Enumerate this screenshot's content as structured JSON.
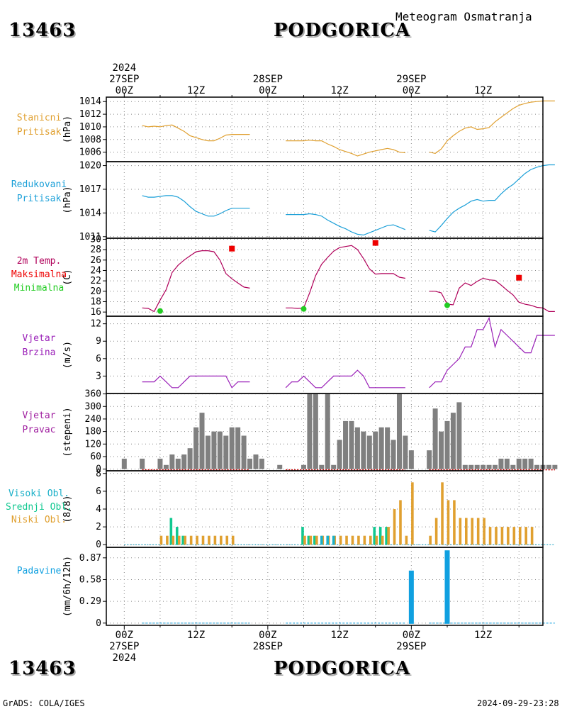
{
  "header": {
    "station_id": "13463",
    "station_name": "PODGORICA",
    "subtitle": "Meteogram Osmatranja"
  },
  "footer": {
    "station_id": "13463",
    "station_name": "PODGORICA",
    "credit": "GrADS: COLA/IGES",
    "timestamp": "2024-09-29-23:28"
  },
  "time_axis": {
    "top_labels": [
      {
        "hour": 0,
        "lines": [
          "2024",
          "27SEP",
          "00Z"
        ]
      },
      {
        "hour": 12,
        "lines": [
          "12Z"
        ]
      },
      {
        "hour": 24,
        "lines": [
          "28SEP",
          "00Z"
        ]
      },
      {
        "hour": 36,
        "lines": [
          "12Z"
        ]
      },
      {
        "hour": 48,
        "lines": [
          "29SEP",
          "00Z"
        ]
      },
      {
        "hour": 60,
        "lines": [
          "12Z"
        ]
      }
    ],
    "bottom_labels": [
      {
        "hour": 0,
        "lines": [
          "00Z",
          "27SEP",
          "2024"
        ]
      },
      {
        "hour": 12,
        "lines": [
          "12Z"
        ]
      },
      {
        "hour": 24,
        "lines": [
          "00Z",
          "28SEP"
        ]
      },
      {
        "hour": 36,
        "lines": [
          "12Z"
        ]
      },
      {
        "hour": 48,
        "lines": [
          "00Z",
          "29SEP"
        ]
      },
      {
        "hour": 60,
        "lines": [
          "12Z"
        ]
      }
    ]
  },
  "colors": {
    "station_pressure": "#e0a030",
    "reduced_pressure": "#1ca0d8",
    "temperature": "#b0005a",
    "tmax": "#ee0000",
    "tmin": "#22cc22",
    "wind_speed": "#9a20b8",
    "wind_dir_bar": "#808080",
    "wind_dir_label": "#a020a0",
    "cloud_high": "#1ab0c8",
    "cloud_mid": "#10c890",
    "cloud_low": "#e0a030",
    "precip": "#10a0e0"
  },
  "chart_data": [
    {
      "id": "station_pressure",
      "type": "line",
      "labels": [
        "Stanicni",
        "Pritisak"
      ],
      "ylabel": "(hPa)",
      "yticks": [
        1006,
        1008,
        1010,
        1012,
        1014
      ],
      "ylim": [
        1004.5,
        1014.7
      ],
      "segments": [
        {
          "x": [
            3,
            4,
            5,
            6,
            7,
            8,
            9,
            10,
            11,
            12,
            13,
            14,
            15,
            16,
            17,
            18,
            19,
            20,
            21
          ],
          "y": [
            1010.2,
            1010.0,
            1010.1,
            1010.0,
            1010.2,
            1010.3,
            1009.8,
            1009.3,
            1008.6,
            1008.3,
            1008.0,
            1007.8,
            1007.8,
            1008.2,
            1008.7,
            1008.8,
            1008.8,
            1008.8,
            1008.8
          ]
        },
        {
          "x": [
            27,
            28,
            29,
            30,
            31,
            32,
            33,
            34,
            35,
            36,
            37,
            38,
            39,
            40,
            41,
            42,
            43,
            44,
            45,
            46,
            47
          ],
          "y": [
            1007.8,
            1007.8,
            1007.8,
            1007.8,
            1007.9,
            1007.8,
            1007.8,
            1007.3,
            1006.9,
            1006.4,
            1006.1,
            1005.8,
            1005.4,
            1005.7,
            1006.0,
            1006.2,
            1006.4,
            1006.6,
            1006.4,
            1006.0,
            1005.9
          ]
        },
        {
          "x": [
            51,
            52,
            53,
            54,
            55,
            56,
            57,
            58,
            59,
            60,
            61,
            62,
            63,
            64,
            65,
            66,
            67,
            68,
            69,
            70,
            71,
            72
          ],
          "y": [
            1006.0,
            1005.8,
            1006.5,
            1007.8,
            1008.6,
            1009.3,
            1009.8,
            1010.0,
            1009.6,
            1009.7,
            1009.9,
            1010.8,
            1011.5,
            1012.2,
            1012.9,
            1013.4,
            1013.7,
            1013.9,
            1014.0,
            1014.1,
            1014.1,
            1014.1
          ]
        }
      ]
    },
    {
      "id": "reduced_pressure",
      "type": "line",
      "labels": [
        "Redukovani",
        "Pritisak"
      ],
      "ylabel": "(hPa)",
      "yticks": [
        1011,
        1014,
        1017,
        1020
      ],
      "ylim": [
        1010.8,
        1020.5
      ],
      "segments": [
        {
          "x": [
            3,
            4,
            5,
            6,
            7,
            8,
            9,
            10,
            11,
            12,
            13,
            14,
            15,
            16,
            17,
            18,
            19,
            20,
            21
          ],
          "y": [
            1016.2,
            1016.0,
            1016.0,
            1016.1,
            1016.2,
            1016.2,
            1016.0,
            1015.5,
            1014.8,
            1014.2,
            1013.9,
            1013.6,
            1013.6,
            1013.9,
            1014.3,
            1014.6,
            1014.6,
            1014.6,
            1014.6
          ]
        },
        {
          "x": [
            27,
            28,
            29,
            30,
            31,
            32,
            33,
            34,
            35,
            36,
            37,
            38,
            39,
            40,
            41,
            42,
            43,
            44,
            45,
            46,
            47
          ],
          "y": [
            1013.8,
            1013.8,
            1013.8,
            1013.8,
            1013.9,
            1013.8,
            1013.6,
            1013.1,
            1012.7,
            1012.3,
            1012.0,
            1011.6,
            1011.3,
            1011.2,
            1011.5,
            1011.8,
            1012.1,
            1012.4,
            1012.5,
            1012.2,
            1011.9
          ]
        },
        {
          "x": [
            51,
            52,
            53,
            54,
            55,
            56,
            57,
            58,
            59,
            60,
            61,
            62,
            63,
            64,
            65,
            66,
            67,
            68,
            69,
            70,
            71,
            72
          ],
          "y": [
            1011.8,
            1011.6,
            1012.4,
            1013.3,
            1014.1,
            1014.6,
            1015.0,
            1015.5,
            1015.7,
            1015.5,
            1015.6,
            1015.6,
            1016.4,
            1017.1,
            1017.6,
            1018.3,
            1019.0,
            1019.5,
            1019.8,
            1020.0,
            1020.1,
            1020.1
          ]
        }
      ]
    },
    {
      "id": "temperature",
      "type": "line",
      "labels": [
        "2m Temp.",
        "Maksimalna",
        "Minimalna"
      ],
      "ylabel": "(C)",
      "yticks": [
        16,
        18,
        20,
        22,
        24,
        26,
        28,
        30
      ],
      "ylim": [
        15.2,
        30.2
      ],
      "segments": [
        {
          "x": [
            3,
            4,
            5,
            6,
            7,
            8,
            9,
            10,
            11,
            12,
            13,
            14,
            15,
            16,
            17,
            18,
            19,
            20,
            21
          ],
          "y": [
            16.8,
            16.7,
            16.1,
            18.3,
            20.3,
            23.6,
            25.0,
            26.0,
            26.8,
            27.6,
            27.8,
            27.8,
            27.6,
            26.0,
            23.4,
            22.4,
            21.6,
            20.8,
            20.6
          ]
        },
        {
          "x": [
            27,
            28,
            29,
            30,
            31,
            32,
            33,
            34,
            35,
            36,
            37,
            38,
            39,
            40,
            41,
            42,
            43,
            44,
            45,
            46,
            47
          ],
          "y": [
            16.8,
            16.8,
            16.7,
            16.8,
            19.7,
            23.0,
            25.2,
            26.5,
            27.7,
            28.4,
            28.6,
            28.8,
            28.0,
            26.3,
            24.3,
            23.3,
            23.4,
            23.4,
            23.4,
            22.7,
            22.5
          ]
        },
        {
          "x": [
            51,
            52,
            53,
            54,
            55,
            56,
            57,
            58,
            59,
            60,
            61,
            62,
            63,
            64,
            65,
            66,
            67,
            68,
            69,
            70,
            71,
            72
          ],
          "y": [
            20.0,
            20.0,
            19.7,
            17.5,
            17.4,
            20.6,
            21.6,
            21.1,
            21.9,
            22.5,
            22.2,
            22.1,
            21.2,
            20.2,
            19.3,
            17.9,
            17.5,
            17.3,
            16.9,
            16.8,
            16.1,
            16.1
          ]
        }
      ],
      "tmax": [
        {
          "x": 18,
          "y": 28.2
        },
        {
          "x": 42,
          "y": 29.3
        },
        {
          "x": 66,
          "y": 22.6
        }
      ],
      "tmin": [
        {
          "x": 6,
          "y": 16.2
        },
        {
          "x": 30,
          "y": 16.6
        },
        {
          "x": 54,
          "y": 17.3
        }
      ]
    },
    {
      "id": "wind_speed",
      "type": "line",
      "labels": [
        "Vjetar",
        "Brzina"
      ],
      "ylabel": "(m/s)",
      "yticks": [
        3,
        6,
        9,
        12
      ],
      "ylim": [
        0,
        13.3
      ],
      "segments": [
        {
          "x": [
            3,
            4,
            5,
            6,
            7,
            8,
            9,
            10,
            11,
            12,
            13,
            14,
            15,
            16,
            17,
            18,
            19,
            20,
            21
          ],
          "y": [
            2,
            2,
            2,
            3,
            2,
            1,
            1,
            2,
            3,
            3,
            3,
            3,
            3,
            3,
            3,
            1,
            2,
            2,
            2
          ]
        },
        {
          "x": [
            27,
            28,
            29,
            30,
            31,
            32,
            33,
            34,
            35,
            36,
            37,
            38,
            39,
            40,
            41,
            42,
            43,
            44,
            45,
            46,
            47
          ],
          "y": [
            1,
            2,
            2,
            3,
            2,
            1,
            1,
            2,
            3,
            3,
            3,
            3,
            4,
            3,
            1,
            1,
            1,
            1,
            1,
            1,
            1
          ]
        },
        {
          "x": [
            51,
            52,
            53,
            54,
            55,
            56,
            57,
            58,
            59,
            60,
            61,
            62,
            63,
            64,
            65,
            66,
            67,
            68,
            69,
            70,
            71,
            72
          ],
          "y": [
            1,
            2,
            2,
            4,
            5,
            6,
            8,
            8,
            11,
            11,
            13,
            8,
            11,
            10,
            9,
            8,
            7,
            7,
            10,
            10,
            10,
            10
          ]
        }
      ]
    },
    {
      "id": "wind_direction",
      "type": "bar",
      "labels": [
        "Vjetar",
        "Pravac"
      ],
      "ylabel": "(stepeni)",
      "yticks": [
        0,
        60,
        120,
        180,
        240,
        300,
        360
      ],
      "ylim": [
        -8,
        362
      ],
      "x": [
        0,
        3,
        6,
        7,
        8,
        9,
        10,
        11,
        12,
        13,
        14,
        15,
        16,
        17,
        18,
        19,
        20,
        21,
        22,
        23,
        26,
        30,
        31,
        32,
        33,
        34,
        35,
        36,
        37,
        38,
        39,
        40,
        41,
        42,
        43,
        44,
        45,
        46,
        47,
        48,
        51,
        52,
        53,
        54,
        55,
        56,
        57,
        58,
        59,
        60,
        61,
        62,
        63,
        64,
        65,
        66,
        67,
        68,
        69,
        70,
        71,
        72
      ],
      "values": [
        50,
        50,
        50,
        20,
        70,
        50,
        70,
        100,
        200,
        270,
        160,
        180,
        180,
        160,
        200,
        200,
        160,
        50,
        70,
        50,
        20,
        20,
        360,
        360,
        20,
        360,
        20,
        140,
        230,
        230,
        200,
        180,
        160,
        180,
        200,
        200,
        140,
        360,
        160,
        90,
        90,
        290,
        180,
        230,
        270,
        320,
        20,
        20,
        20,
        20,
        20,
        20,
        50,
        50,
        20,
        50,
        50,
        50,
        20,
        20,
        20,
        20
      ]
    },
    {
      "id": "clouds",
      "type": "bar",
      "labels": [
        "Visoki Obl.",
        "Srednji Obl.",
        "Niski Obl."
      ],
      "ylabel": "(8/8)",
      "yticks": [
        0,
        2,
        4,
        6,
        8
      ],
      "ylim": [
        -0.3,
        8.3
      ],
      "series": [
        {
          "name": "Visoki Obl.",
          "x": [
            33,
            34,
            35
          ],
          "values": [
            1,
            1,
            1
          ]
        },
        {
          "name": "Srednji Obl.",
          "x": [
            8,
            9,
            10,
            30,
            31,
            32,
            42,
            43,
            44
          ],
          "values": [
            3,
            2,
            1,
            2,
            1,
            1,
            2,
            2,
            2
          ]
        },
        {
          "name": "Niski Obl.",
          "x": [
            6,
            7,
            8,
            9,
            10,
            11,
            12,
            13,
            14,
            15,
            16,
            17,
            18,
            30,
            31,
            32,
            33,
            34,
            35,
            36,
            37,
            38,
            39,
            40,
            41,
            42,
            43,
            44,
            45,
            46,
            47,
            48,
            51,
            52,
            53,
            54,
            55,
            56,
            57,
            58,
            59,
            60,
            61,
            62,
            63,
            64,
            65,
            66,
            67,
            68
          ],
          "values": [
            1,
            1,
            1,
            1,
            1,
            1,
            1,
            1,
            1,
            1,
            1,
            1,
            1,
            1,
            1,
            1,
            1,
            1,
            1,
            1,
            1,
            1,
            1,
            1,
            1,
            1,
            1,
            2,
            4,
            5,
            1,
            7,
            1,
            3,
            7,
            5,
            5,
            3,
            3,
            3,
            3,
            3,
            2,
            2,
            2,
            2,
            2,
            2,
            2,
            2
          ]
        }
      ]
    },
    {
      "id": "precipitation",
      "type": "bar",
      "labels": [
        "Padavine"
      ],
      "ylabel": "(mm/6h/12h)",
      "yticks": [
        0,
        0.29,
        0.58,
        0.87
      ],
      "ylim": [
        -0.03,
        1.01
      ],
      "x": [
        48,
        54
      ],
      "values": [
        0.7,
        0.97
      ]
    }
  ]
}
